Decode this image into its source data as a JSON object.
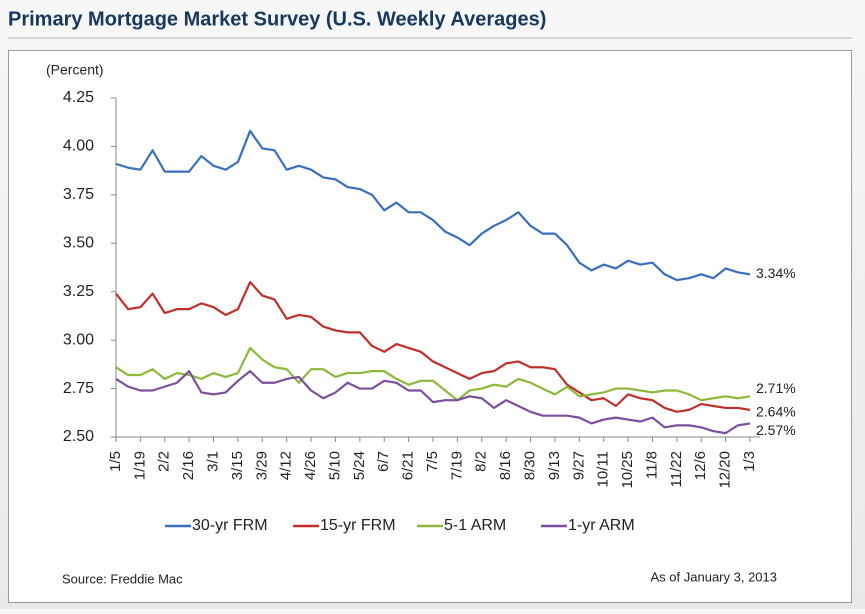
{
  "chart_data": {
    "type": "line",
    "title": "Primary Mortgage Market Survey (U.S. Weekly Averages)",
    "y_label": "(Percent)",
    "source": "Source: Freddie Mac",
    "note": "As of January 3, 2013",
    "categories": [
      "1/5",
      null,
      "1/19",
      null,
      "2/2",
      null,
      "2/16",
      null,
      "3/1",
      null,
      "3/15",
      null,
      "3/29",
      null,
      "4/12",
      null,
      "4/26",
      null,
      "5/10",
      null,
      "5/24",
      null,
      "6/7",
      null,
      "6/21",
      null,
      "7/5",
      null,
      "7/19",
      null,
      "8/2",
      null,
      "8/16",
      null,
      "8/30",
      null,
      "9/13",
      null,
      "9/27",
      null,
      "10/11",
      null,
      "10/25",
      null,
      "11/8",
      null,
      "11/22",
      null,
      "12/6",
      null,
      "12/20",
      null,
      "1/3"
    ],
    "ylim": [
      2.5,
      4.25
    ],
    "yticks": [
      {
        "value": 2.5,
        "label": "2.50"
      },
      {
        "value": 2.75,
        "label": "2.75"
      },
      {
        "value": 3,
        "label": "3.00"
      },
      {
        "value": 3.25,
        "label": "3.25"
      },
      {
        "value": 3.5,
        "label": "3.50"
      },
      {
        "value": 3.75,
        "label": "3.75"
      },
      {
        "value": 4,
        "label": "4.00"
      },
      {
        "value": 4.25,
        "label": "4.25"
      }
    ],
    "grid": false,
    "legend": "bottom",
    "series": [
      {
        "name": "30-yr FRM",
        "color": "#3a6fbf",
        "values": [
          3.91,
          3.89,
          3.88,
          3.98,
          3.87,
          3.87,
          3.87,
          3.95,
          3.9,
          3.88,
          3.92,
          4.08,
          3.99,
          3.98,
          3.88,
          3.9,
          3.88,
          3.84,
          3.83,
          3.79,
          3.78,
          3.75,
          3.67,
          3.71,
          3.66,
          3.66,
          3.62,
          3.56,
          3.53,
          3.49,
          3.55,
          3.59,
          3.62,
          3.66,
          3.59,
          3.55,
          3.55,
          3.49,
          3.4,
          3.36,
          3.39,
          3.37,
          3.41,
          3.39,
          3.4,
          3.34,
          3.31,
          3.32,
          3.34,
          3.32,
          3.37,
          3.35,
          3.34
        ],
        "value_labels": [
          null,
          null,
          null,
          null,
          null,
          null,
          null,
          null,
          null,
          null,
          null,
          null,
          null,
          null,
          null,
          null,
          null,
          null,
          null,
          null,
          null,
          null,
          null,
          null,
          null,
          null,
          null,
          null,
          null,
          null,
          null,
          null,
          null,
          null,
          null,
          null,
          null,
          null,
          null,
          null,
          null,
          null,
          null,
          null,
          null,
          null,
          null,
          null,
          null,
          null,
          null,
          null,
          "3.34%"
        ]
      },
      {
        "name": "15-yr FRM",
        "color": "#c0302a",
        "values": [
          3.24,
          3.16,
          3.17,
          3.24,
          3.14,
          3.16,
          3.16,
          3.19,
          3.17,
          3.13,
          3.16,
          3.3,
          3.23,
          3.21,
          3.11,
          3.13,
          3.12,
          3.07,
          3.05,
          3.04,
          3.04,
          2.97,
          2.94,
          2.98,
          2.96,
          2.94,
          2.89,
          2.86,
          2.83,
          2.8,
          2.83,
          2.84,
          2.88,
          2.89,
          2.86,
          2.86,
          2.85,
          2.77,
          2.73,
          2.69,
          2.7,
          2.66,
          2.72,
          2.7,
          2.69,
          2.65,
          2.63,
          2.64,
          2.67,
          2.66,
          2.65,
          2.65,
          2.64
        ],
        "value_labels": [
          null,
          null,
          null,
          null,
          null,
          null,
          null,
          null,
          null,
          null,
          null,
          null,
          null,
          null,
          null,
          null,
          null,
          null,
          null,
          null,
          null,
          null,
          null,
          null,
          null,
          null,
          null,
          null,
          null,
          null,
          null,
          null,
          null,
          null,
          null,
          null,
          null,
          null,
          null,
          null,
          null,
          null,
          null,
          null,
          null,
          null,
          null,
          null,
          null,
          null,
          null,
          null,
          "2.64%"
        ]
      },
      {
        "name": "5-1 ARM",
        "color": "#8db83a",
        "values": [
          2.86,
          2.82,
          2.82,
          2.85,
          2.8,
          2.83,
          2.82,
          2.8,
          2.83,
          2.81,
          2.83,
          2.96,
          2.9,
          2.86,
          2.85,
          2.78,
          2.85,
          2.85,
          2.81,
          2.83,
          2.83,
          2.84,
          2.84,
          2.8,
          2.77,
          2.79,
          2.79,
          2.74,
          2.69,
          2.74,
          2.75,
          2.77,
          2.76,
          2.8,
          2.78,
          2.75,
          2.72,
          2.76,
          2.71,
          2.72,
          2.73,
          2.75,
          2.75,
          2.74,
          2.73,
          2.74,
          2.74,
          2.72,
          2.69,
          2.7,
          2.71,
          2.7,
          2.71
        ],
        "value_labels": [
          null,
          null,
          null,
          null,
          null,
          null,
          null,
          null,
          null,
          null,
          null,
          null,
          null,
          null,
          null,
          null,
          null,
          null,
          null,
          null,
          null,
          null,
          null,
          null,
          null,
          null,
          null,
          null,
          null,
          null,
          null,
          null,
          null,
          null,
          null,
          null,
          null,
          null,
          null,
          null,
          null,
          null,
          null,
          null,
          null,
          null,
          null,
          null,
          null,
          null,
          null,
          null,
          "2.71%"
        ]
      },
      {
        "name": "1-yr ARM",
        "color": "#7a4f9e",
        "values": [
          2.8,
          2.76,
          2.74,
          2.74,
          2.76,
          2.78,
          2.84,
          2.73,
          2.72,
          2.73,
          2.79,
          2.84,
          2.78,
          2.78,
          2.8,
          2.81,
          2.74,
          2.7,
          2.73,
          2.78,
          2.75,
          2.75,
          2.79,
          2.78,
          2.74,
          2.74,
          2.68,
          2.69,
          2.69,
          2.71,
          2.7,
          2.65,
          2.69,
          2.66,
          2.63,
          2.61,
          2.61,
          2.61,
          2.6,
          2.57,
          2.59,
          2.6,
          2.59,
          2.58,
          2.6,
          2.55,
          2.56,
          2.56,
          2.55,
          2.53,
          2.52,
          2.56,
          2.57
        ],
        "value_labels": [
          null,
          null,
          null,
          null,
          null,
          null,
          null,
          null,
          null,
          null,
          null,
          null,
          null,
          null,
          null,
          null,
          null,
          null,
          null,
          null,
          null,
          null,
          null,
          null,
          null,
          null,
          null,
          null,
          null,
          null,
          null,
          null,
          null,
          null,
          null,
          null,
          null,
          null,
          null,
          null,
          null,
          null,
          null,
          null,
          null,
          null,
          null,
          null,
          null,
          null,
          null,
          null,
          "2.57%"
        ]
      }
    ]
  }
}
